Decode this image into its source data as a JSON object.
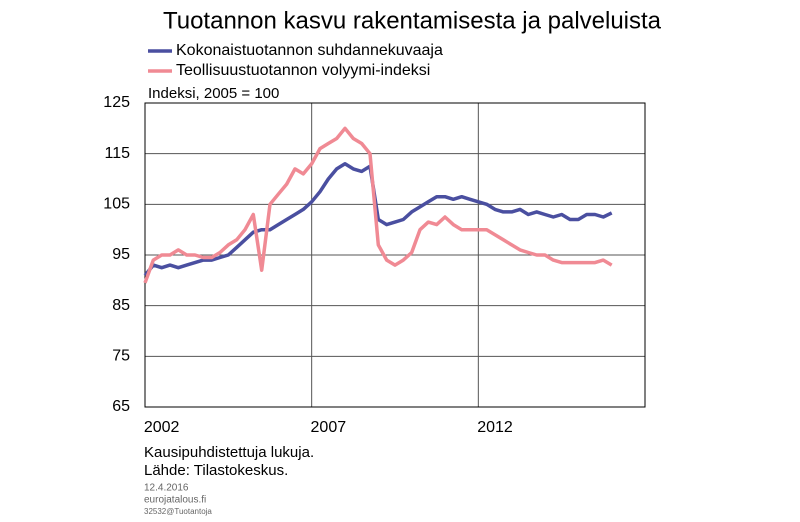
{
  "chart_data": {
    "type": "line",
    "title": "Tuotannon kasvu rakentamisesta ja palveluista",
    "y_label": "Indeksi, 2005 = 100",
    "notes": [
      "Kausipuhdistettuja lukuja.",
      "Lähde: Tilastokeskus."
    ],
    "footer": [
      "12.4.2016",
      "eurojatalous.fi",
      "32532@Tuotantoja"
    ],
    "x": [
      2002,
      2002.25,
      2002.5,
      2002.75,
      2003,
      2003.25,
      2003.5,
      2003.75,
      2004,
      2004.25,
      2004.5,
      2004.75,
      2005,
      2005.25,
      2005.5,
      2005.75,
      2006,
      2006.25,
      2006.5,
      2006.75,
      2007,
      2007.25,
      2007.5,
      2007.75,
      2008,
      2008.25,
      2008.5,
      2008.75,
      2009,
      2009.25,
      2009.5,
      2009.75,
      2010,
      2010.25,
      2010.5,
      2010.75,
      2011,
      2011.25,
      2011.5,
      2011.75,
      2012,
      2012.25,
      2012.5,
      2012.75,
      2013,
      2013.25,
      2013.5,
      2013.75,
      2014,
      2014.25,
      2014.5,
      2014.75,
      2015,
      2015.25,
      2015.5,
      2015.75,
      2016
    ],
    "series": [
      {
        "name": "Kokonaistuotannon suhdannekuvaaja",
        "color": "#4a4fa0",
        "values": [
          91,
          93,
          92.5,
          93,
          92.5,
          93,
          93.5,
          94,
          94,
          94.5,
          95,
          96.5,
          98,
          99.5,
          100,
          100,
          101,
          102,
          103,
          104,
          105.5,
          107.5,
          110,
          112,
          113,
          112,
          111.5,
          112.5,
          102,
          101,
          101.5,
          102,
          103.5,
          104.5,
          105.5,
          106.5,
          106.5,
          106,
          106.5,
          106,
          105.5,
          105,
          104,
          103.5,
          103.5,
          104,
          103,
          103.5,
          103,
          102.5,
          103,
          102,
          102,
          103,
          103,
          102.5,
          103.3
        ]
      },
      {
        "name": "Teollisuustuotannon volyymi-indeksi",
        "color": "#f08a94",
        "values": [
          89.5,
          94,
          95,
          95,
          96,
          95,
          95,
          94.5,
          94.5,
          95.5,
          97,
          98,
          100,
          103,
          92,
          105,
          107,
          109,
          112,
          111,
          113,
          116,
          117,
          118,
          120,
          118,
          117,
          115,
          97,
          94,
          93,
          94,
          95.5,
          100,
          101.5,
          101,
          102.5,
          101,
          100,
          100,
          100,
          100,
          99,
          98,
          97,
          96,
          95.5,
          95,
          95,
          94,
          93.5,
          93.5,
          93.5,
          93.5,
          93.5,
          94,
          93
        ]
      }
    ],
    "xlim": [
      2002,
      2017
    ],
    "xticks": [
      2002,
      2007,
      2012
    ],
    "ylim": [
      65,
      125
    ],
    "yticks": [
      65,
      75,
      85,
      95,
      105,
      115,
      125
    ],
    "grid": true
  }
}
